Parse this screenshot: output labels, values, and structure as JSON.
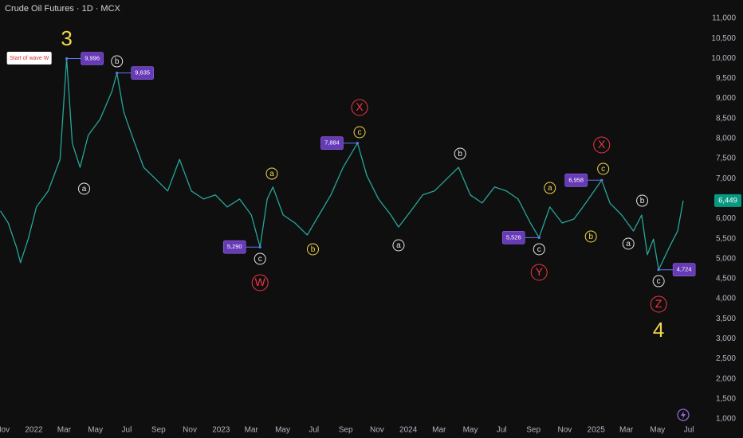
{
  "chart_data": {
    "type": "line",
    "title": "Crude Oil Futures · 1D · MCX",
    "color": "#26a69a",
    "grid": false,
    "x": [
      "2021-10-28",
      "2021-11-12",
      "2021-11-28",
      "2021-12-06",
      "2021-12-21",
      "2022-01-06",
      "2022-01-29",
      "2022-02-21",
      "2022-03-06",
      "2022-03-17",
      "2022-04-01",
      "2022-04-17",
      "2022-05-10",
      "2022-06-02",
      "2022-06-12",
      "2022-06-25",
      "2022-07-11",
      "2022-08-03",
      "2022-08-27",
      "2022-09-19",
      "2022-10-12",
      "2022-11-04",
      "2022-11-28",
      "2022-12-21",
      "2023-01-13",
      "2023-02-06",
      "2023-03-01",
      "2023-03-18",
      "2023-04-01",
      "2023-04-12",
      "2023-05-02",
      "2023-05-25",
      "2023-06-18",
      "2023-07-11",
      "2023-08-03",
      "2023-08-27",
      "2023-09-24",
      "2023-10-12",
      "2023-11-04",
      "2023-11-28",
      "2023-12-13",
      "2024-01-06",
      "2024-01-29",
      "2024-02-21",
      "2024-03-15",
      "2024-04-08",
      "2024-05-01",
      "2024-05-24",
      "2024-06-17",
      "2024-07-10",
      "2024-08-02",
      "2024-08-26",
      "2024-09-12",
      "2024-10-03",
      "2024-10-27",
      "2024-11-19",
      "2024-12-12",
      "2025-01-12",
      "2025-01-28",
      "2025-02-20",
      "2025-03-15",
      "2025-03-31",
      "2025-04-11",
      "2025-04-23",
      "2025-05-03",
      "2025-05-24",
      "2025-06-09",
      "2025-06-20"
    ],
    "values": [
      6190,
      5890,
      5290,
      4900,
      5490,
      6290,
      6690,
      7480,
      9996,
      7880,
      7280,
      8080,
      8480,
      9170,
      9635,
      8670,
      8080,
      7280,
      6980,
      6690,
      7480,
      6690,
      6490,
      6590,
      6290,
      6490,
      6090,
      5290,
      6490,
      6790,
      6090,
      5890,
      5590,
      6090,
      6590,
      7280,
      7884,
      7080,
      6490,
      6090,
      5790,
      6190,
      6590,
      6690,
      6980,
      7280,
      6590,
      6390,
      6790,
      6690,
      6490,
      5890,
      5526,
      6290,
      5890,
      5990,
      6390,
      6958,
      6390,
      6090,
      5690,
      6090,
      5100,
      5490,
      4724,
      5290,
      5690,
      6449
    ],
    "value_labels": [
      null,
      null,
      null,
      null,
      null,
      null,
      null,
      null,
      "9,996",
      null,
      null,
      null,
      null,
      null,
      "9,635",
      null,
      null,
      null,
      null,
      null,
      null,
      null,
      null,
      null,
      null,
      null,
      null,
      "5,290",
      null,
      null,
      null,
      null,
      null,
      null,
      null,
      null,
      "7,884",
      null,
      null,
      null,
      null,
      null,
      null,
      null,
      null,
      null,
      null,
      null,
      null,
      null,
      null,
      null,
      "5,526",
      null,
      null,
      null,
      null,
      "6,958",
      null,
      null,
      null,
      null,
      null,
      null,
      "4,724",
      null,
      null,
      "6,449"
    ],
    "xlim": [
      "2021-10-27",
      "2025-08-18"
    ],
    "xticks": [
      {
        "value": "2021-11-01",
        "label": "Nov"
      },
      {
        "value": "2022-01-01",
        "label": "2022"
      },
      {
        "value": "2022-03-01",
        "label": "Mar"
      },
      {
        "value": "2022-05-01",
        "label": "May"
      },
      {
        "value": "2022-07-01",
        "label": "Jul"
      },
      {
        "value": "2022-09-01",
        "label": "Sep"
      },
      {
        "value": "2022-11-01",
        "label": "Nov"
      },
      {
        "value": "2023-01-01",
        "label": "2023"
      },
      {
        "value": "2023-03-01",
        "label": "Mar"
      },
      {
        "value": "2023-05-01",
        "label": "May"
      },
      {
        "value": "2023-07-01",
        "label": "Jul"
      },
      {
        "value": "2023-09-01",
        "label": "Sep"
      },
      {
        "value": "2023-11-01",
        "label": "Nov"
      },
      {
        "value": "2024-01-01",
        "label": "2024"
      },
      {
        "value": "2024-03-01",
        "label": "Mar"
      },
      {
        "value": "2024-05-01",
        "label": "May"
      },
      {
        "value": "2024-07-01",
        "label": "Jul"
      },
      {
        "value": "2024-09-01",
        "label": "Sep"
      },
      {
        "value": "2024-11-01",
        "label": "Nov"
      },
      {
        "value": "2025-01-01",
        "label": "2025"
      },
      {
        "value": "2025-03-01",
        "label": "Mar"
      },
      {
        "value": "2025-05-01",
        "label": "May"
      },
      {
        "value": "2025-07-01",
        "label": "Jul"
      }
    ],
    "ylim": [
      722,
      11457
    ],
    "yticks": [
      {
        "value": 1000,
        "label": "1,000"
      },
      {
        "value": 1500,
        "label": "1,500"
      },
      {
        "value": 2000,
        "label": "2,000"
      },
      {
        "value": 2500,
        "label": "2,500"
      },
      {
        "value": 3000,
        "label": "3,000"
      },
      {
        "value": 3500,
        "label": "3,500"
      },
      {
        "value": 4000,
        "label": "4,000"
      },
      {
        "value": 4500,
        "label": "4,500"
      },
      {
        "value": 5000,
        "label": "5,000"
      },
      {
        "value": 5500,
        "label": "5,500"
      },
      {
        "value": 6000,
        "label": "6,000"
      },
      {
        "value": 6500,
        "label": "6,500"
      },
      {
        "value": 7000,
        "label": "7,000"
      },
      {
        "value": 7500,
        "label": "7,500"
      },
      {
        "value": 8000,
        "label": "8,000"
      },
      {
        "value": 8500,
        "label": "8,500"
      },
      {
        "value": 9000,
        "label": "9,000"
      },
      {
        "value": 9500,
        "label": "9,500"
      },
      {
        "value": 10000,
        "label": "10,000"
      },
      {
        "value": 10500,
        "label": "10,500"
      },
      {
        "value": 11000,
        "label": "11,000"
      }
    ],
    "annotations": [
      {
        "text": "3",
        "style": "degree",
        "x": "2022-03-06",
        "y": 10463
      },
      {
        "text": "Start of wave W",
        "style": "note",
        "x": "2021-12-23",
        "y": 10006
      },
      {
        "text": "b",
        "style": "circle-white",
        "x": "2022-06-12",
        "y": 9926
      },
      {
        "text": "a",
        "style": "circle-white",
        "x": "2022-04-09",
        "y": 6746
      },
      {
        "text": "a",
        "style": "circle-yellow",
        "x": "2023-04-10",
        "y": 7123
      },
      {
        "text": "c",
        "style": "circle-white",
        "x": "2023-03-18",
        "y": 4996
      },
      {
        "text": "W",
        "style": "circle-red",
        "x": "2023-03-18",
        "y": 4400
      },
      {
        "text": "b",
        "style": "circle-yellow",
        "x": "2023-06-29",
        "y": 5235
      },
      {
        "text": "X",
        "style": "circle-red",
        "x": "2023-09-28",
        "y": 8773
      },
      {
        "text": "c",
        "style": "circle-yellow",
        "x": "2023-09-28",
        "y": 8157
      },
      {
        "text": "a",
        "style": "circle-white",
        "x": "2023-12-13",
        "y": 5334
      },
      {
        "text": "b",
        "style": "circle-white",
        "x": "2024-04-11",
        "y": 7620
      },
      {
        "text": "a",
        "style": "circle-yellow",
        "x": "2024-10-03",
        "y": 6765
      },
      {
        "text": "b",
        "style": "circle-yellow",
        "x": "2024-12-22",
        "y": 5553
      },
      {
        "text": "c",
        "style": "circle-white",
        "x": "2024-09-12",
        "y": 5235
      },
      {
        "text": "Y",
        "style": "circle-red",
        "x": "2024-09-12",
        "y": 4658
      },
      {
        "text": "X",
        "style": "circle-red",
        "x": "2025-01-12",
        "y": 7839
      },
      {
        "text": "c",
        "style": "circle-yellow",
        "x": "2025-01-15",
        "y": 7243
      },
      {
        "text": "b",
        "style": "circle-white",
        "x": "2025-04-01",
        "y": 6447
      },
      {
        "text": "a",
        "style": "circle-white",
        "x": "2025-03-05",
        "y": 5374
      },
      {
        "text": "c",
        "style": "circle-white",
        "x": "2025-05-03",
        "y": 4439
      },
      {
        "text": "Z",
        "style": "circle-red",
        "x": "2025-05-03",
        "y": 3863
      },
      {
        "text": "4",
        "style": "degree",
        "x": "2025-05-03",
        "y": 3187
      }
    ]
  }
}
